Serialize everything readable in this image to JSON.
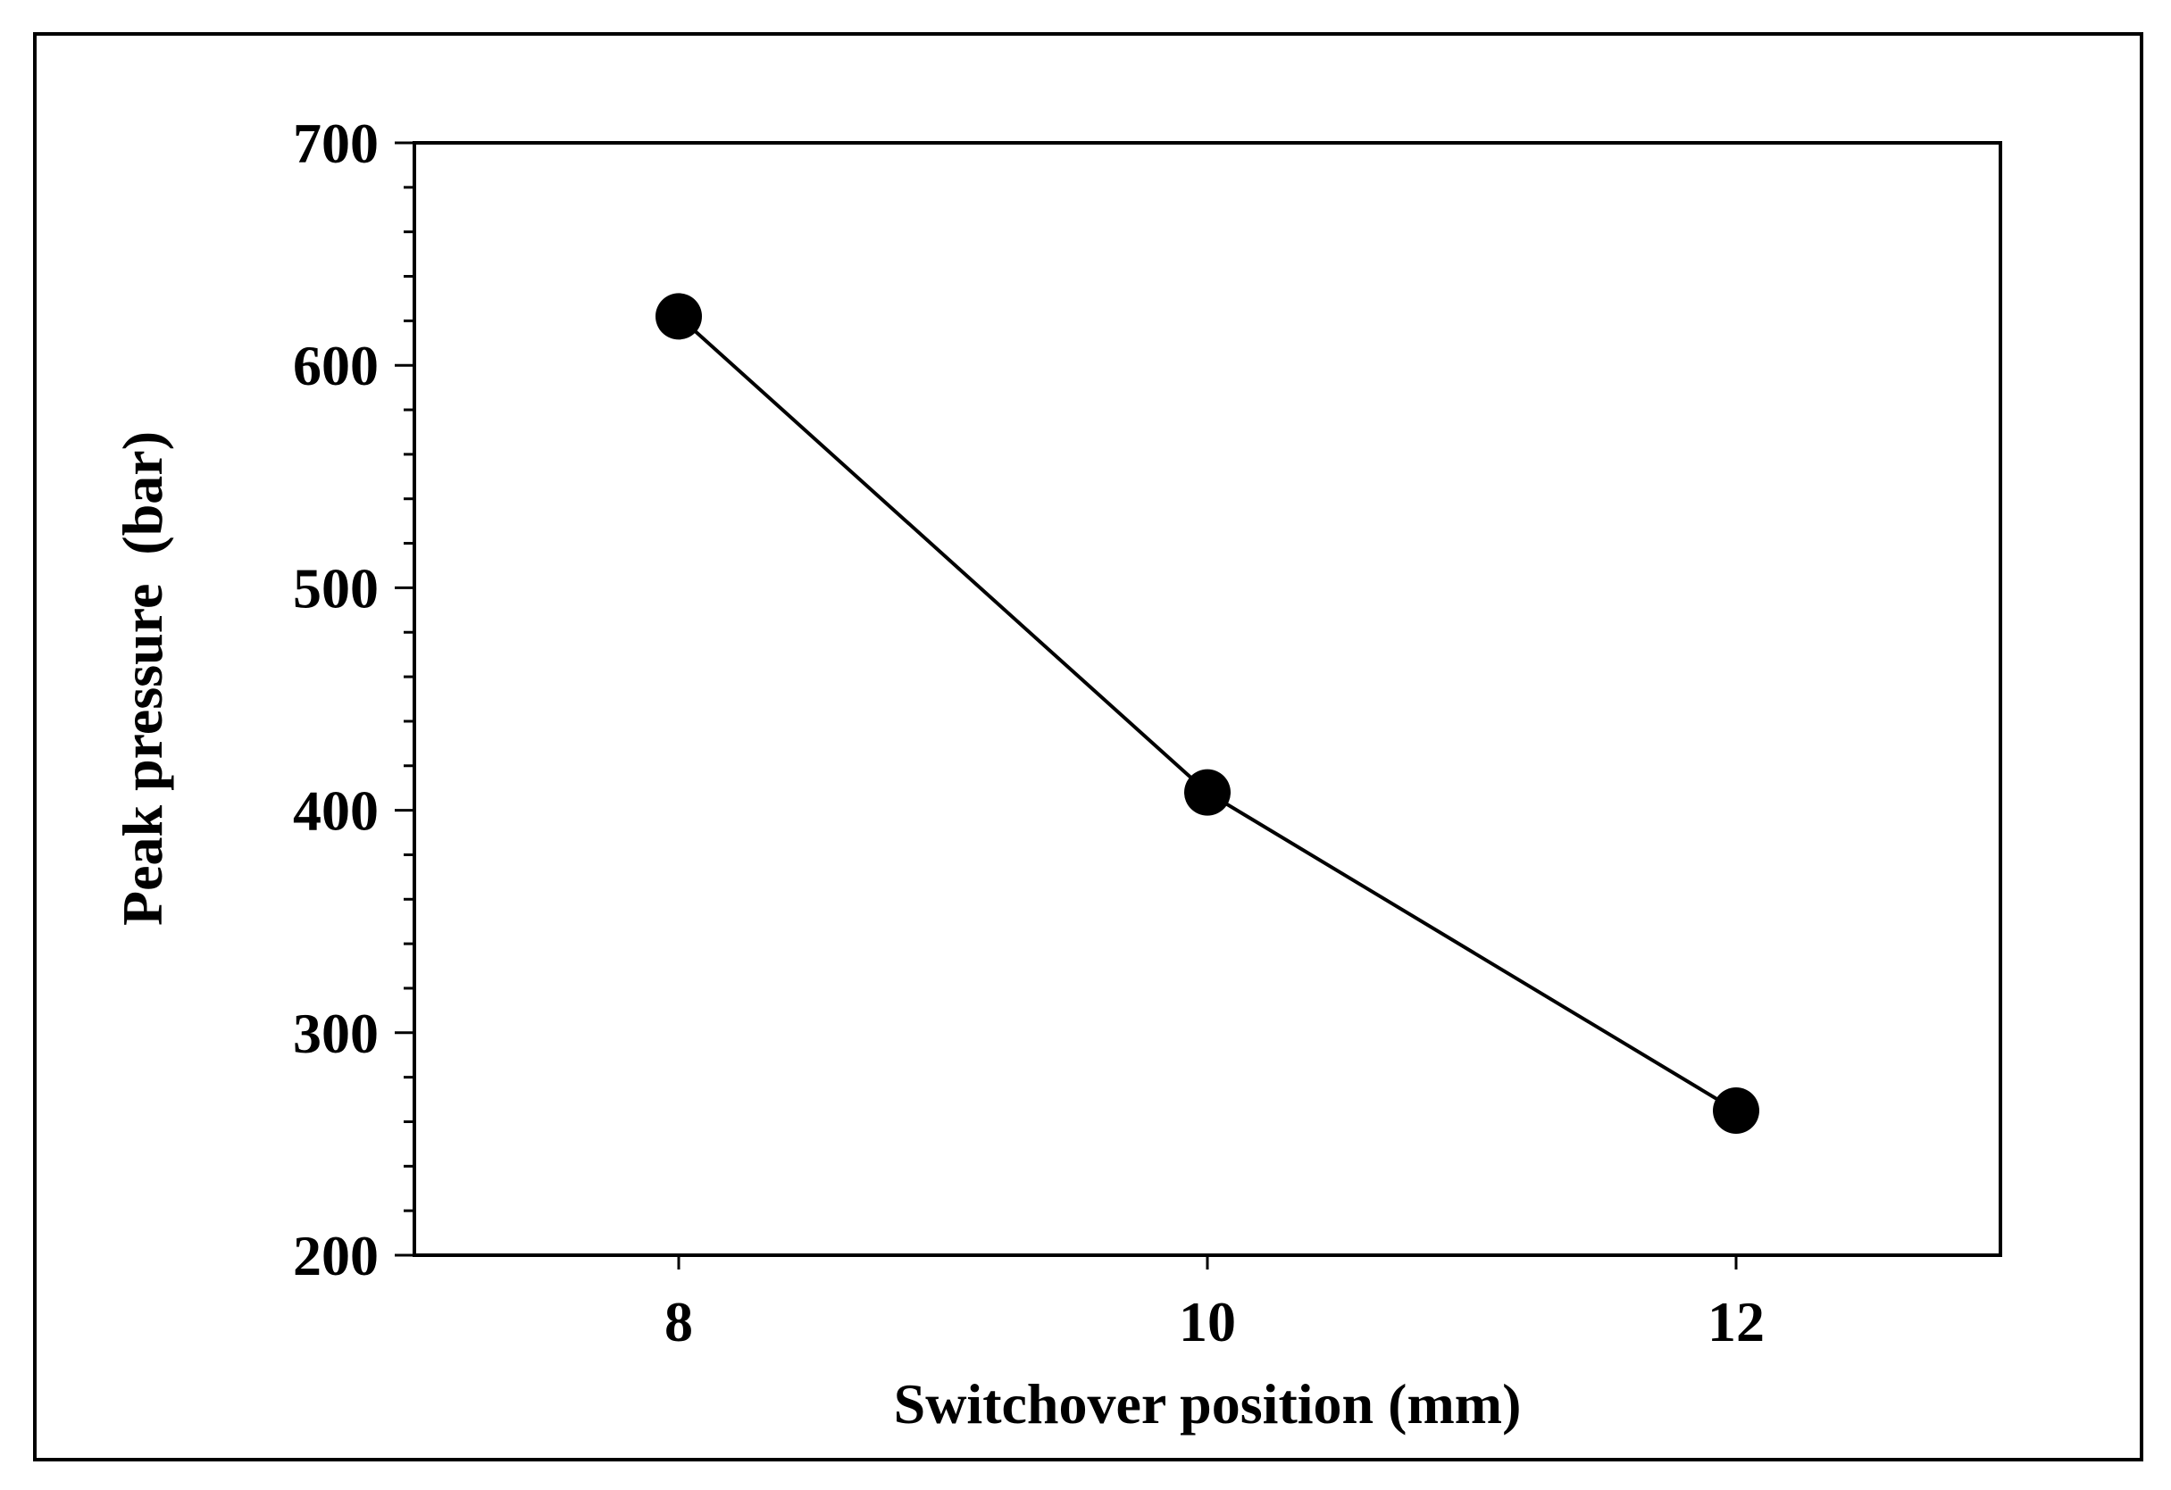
{
  "chart_data": {
    "type": "line",
    "title": "",
    "xlabel": "Switchover position (mm)",
    "ylabel": "Peak pressure  (bar)",
    "x": [
      8,
      10,
      12
    ],
    "series": [
      {
        "values": [
          622,
          408,
          265
        ]
      }
    ],
    "xticks": [
      "8",
      "10",
      "12"
    ],
    "yticks": [
      "200",
      "300",
      "400",
      "500",
      "600",
      "700"
    ],
    "xlim": [
      7,
      13
    ],
    "ylim": [
      200,
      700
    ],
    "y_minor_step": 20,
    "grid": false,
    "legend": "none",
    "line_color": "#000000",
    "marker": "filled-circle",
    "marker_color": "#000000"
  }
}
